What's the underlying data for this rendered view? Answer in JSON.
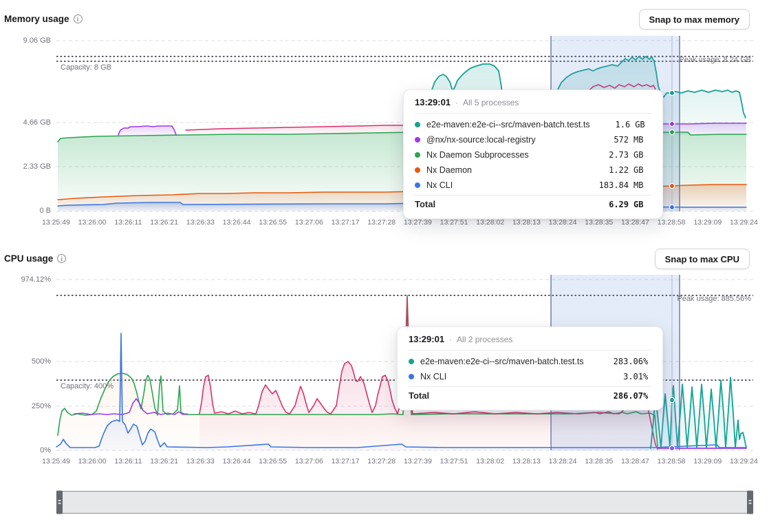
{
  "memory": {
    "title": "Memory usage",
    "snap_button": "Snap to max memory",
    "y_ticks": [
      "9.06 GB",
      "4.66 GB",
      "2.33 GB",
      "0 B"
    ],
    "capacity_label": "Capacity: 8 GB",
    "peak_label": "Peak usage: 8.24 GB",
    "tooltip": {
      "time": "13:29:01",
      "separator": "·",
      "subtitle": "All 5 processes",
      "rows": [
        {
          "name": "e2e-maven:e2e-ci--src/maven-batch.test.ts",
          "value": "1.6",
          "unit": "GB",
          "color": "#14a394"
        },
        {
          "name": "@nx/nx-source:local-registry",
          "value": "572",
          "unit": "MB",
          "color": "#9d3be8"
        },
        {
          "name": "Nx Daemon Subprocesses",
          "value": "2.73",
          "unit": "GB",
          "color": "#2aa451"
        },
        {
          "name": "Nx Daemon",
          "value": "1.22",
          "unit": "GB",
          "color": "#e8590c"
        },
        {
          "name": "Nx CLI",
          "value": "183.84",
          "unit": "MB",
          "color": "#3b76e1"
        }
      ],
      "total_label": "Total",
      "total_value": "6.29",
      "total_unit": "GB"
    }
  },
  "cpu": {
    "title": "CPU usage",
    "snap_button": "Snap to max CPU",
    "y_ticks": [
      "974.12%",
      "500%",
      "250%",
      "0%"
    ],
    "capacity_label": "Capacity: 400%",
    "peak_label": "Peak usage: 885.56%",
    "tooltip": {
      "time": "13:29:01",
      "separator": "·",
      "subtitle": "All 2 processes",
      "rows": [
        {
          "name": "e2e-maven:e2e-ci--src/maven-batch.test.ts",
          "value": "283.06",
          "unit": "%",
          "color": "#14a394"
        },
        {
          "name": "Nx CLI",
          "value": "3.01",
          "unit": "%",
          "color": "#3b76e1"
        }
      ],
      "total_label": "Total",
      "total_value": "286.07",
      "total_unit": "%"
    }
  },
  "time_axis": {
    "ticks": [
      "13:25:49",
      "13:26:00",
      "13:26:11",
      "13:26:21",
      "13:26:33",
      "13:26:44",
      "13:26:55",
      "13:27:06",
      "13:27:17",
      "13:27:28",
      "13:27:39",
      "13:27:51",
      "13:28:02",
      "13:28:13",
      "13:28:24",
      "13:28:35",
      "13:28:47",
      "13:28:58",
      "13:29:09",
      "13:29:24"
    ]
  },
  "colors": {
    "teal": "#14a394",
    "purple": "#9d3be8",
    "green": "#2aa451",
    "orange": "#e8590c",
    "blue": "#3b76e1",
    "pink": "#d6336c",
    "selection_border": "#55719f"
  }
}
